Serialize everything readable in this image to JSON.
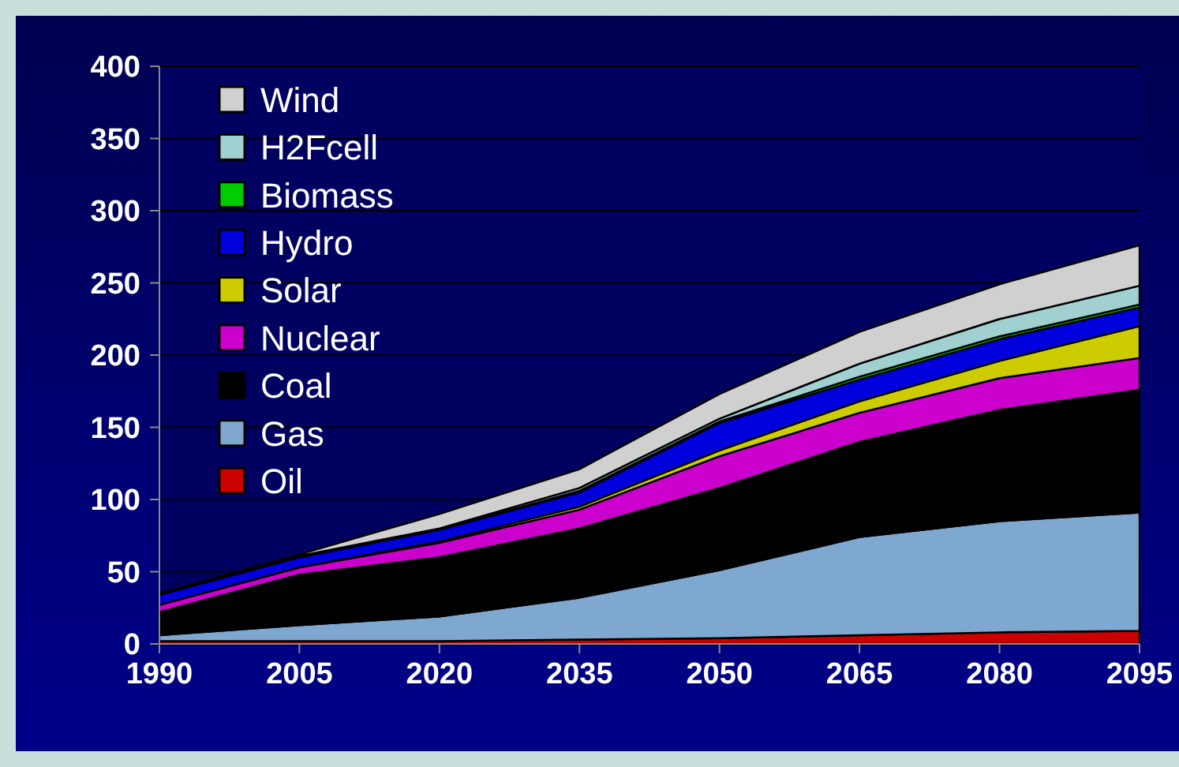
{
  "chart_data": {
    "type": "area",
    "stacked": true,
    "x": [
      1990,
      2005,
      2020,
      2035,
      2050,
      2065,
      2080,
      2095
    ],
    "xlim": [
      1990,
      2095
    ],
    "xticks": [
      1990,
      2005,
      2020,
      2035,
      2050,
      2065,
      2080,
      2095
    ],
    "ylim": [
      0,
      400
    ],
    "yticks": [
      0,
      50,
      100,
      150,
      200,
      250,
      300,
      350,
      400
    ],
    "grid": "y",
    "legend": "top left",
    "series": [
      {
        "name": "Oil",
        "color": "#cc0000",
        "values": [
          2,
          2,
          2,
          3,
          4,
          6,
          8,
          9
        ]
      },
      {
        "name": "Gas",
        "color": "#7fa8d0",
        "values": [
          4,
          11,
          17,
          29,
          47,
          68,
          77,
          82
        ]
      },
      {
        "name": "Coal",
        "color": "#000000",
        "values": [
          16,
          35,
          41,
          48,
          57,
          66,
          77,
          85
        ]
      },
      {
        "name": "Nuclear",
        "color": "#cc00cc",
        "values": [
          5,
          5,
          10,
          13,
          22,
          20,
          22,
          22
        ]
      },
      {
        "name": "Solar",
        "color": "#cccc00",
        "values": [
          0,
          0,
          1,
          2,
          4,
          8,
          12,
          22
        ]
      },
      {
        "name": "Hydro",
        "color": "#0000dd",
        "values": [
          7,
          7,
          8,
          10,
          19,
          15,
          15,
          13
        ]
      },
      {
        "name": "Biomass",
        "color": "#00cc00",
        "values": [
          0,
          0,
          0,
          1,
          1,
          2,
          2,
          2
        ]
      },
      {
        "name": "H2Fcell",
        "color": "#a0d0d0",
        "values": [
          0,
          1,
          1,
          2,
          2,
          9,
          12,
          13
        ]
      },
      {
        "name": "Wind",
        "color": "#d0d0d0",
        "values": [
          1,
          1,
          10,
          13,
          17,
          22,
          24,
          28
        ]
      }
    ]
  }
}
